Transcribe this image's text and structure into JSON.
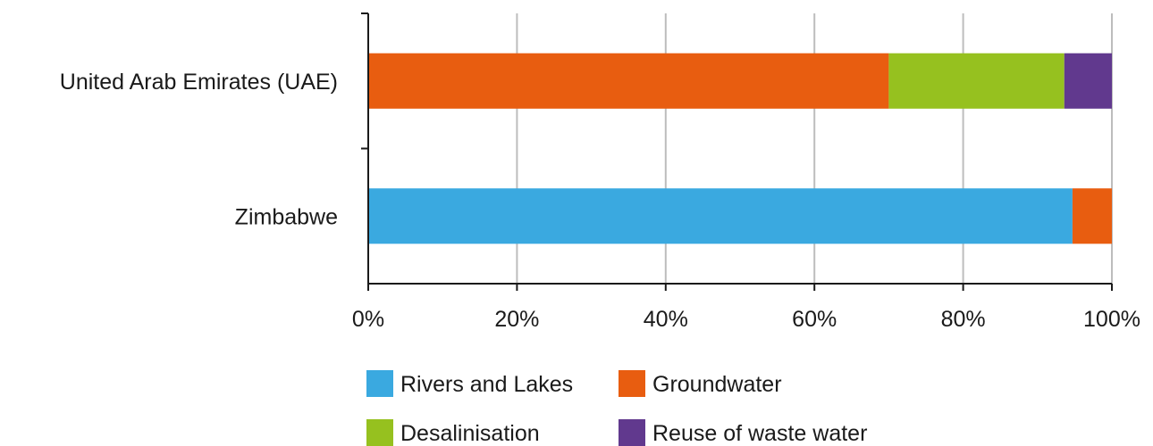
{
  "chart_data": {
    "type": "bar",
    "orientation": "horizontal",
    "stacked": true,
    "percent_stacked": true,
    "categories": [
      "United Arab Emirates (UAE)",
      "Zimbabwe"
    ],
    "series": [
      {
        "name": "Rivers and Lakes",
        "color": "#3aa9e0",
        "values": [
          0,
          94.7
        ]
      },
      {
        "name": "Groundwater",
        "color": "#e85d10",
        "values": [
          70.0,
          5.3
        ]
      },
      {
        "name": "Desalinisation",
        "color": "#96c11f",
        "values": [
          23.6,
          0
        ]
      },
      {
        "name": "Reuse of waste water",
        "color": "#61398e",
        "values": [
          6.4,
          0
        ]
      }
    ],
    "xlim": [
      0,
      100
    ],
    "xticks": [
      "0%",
      "20%",
      "40%",
      "60%",
      "80%",
      "100%"
    ],
    "grid": "vertical",
    "legend": "bottom"
  }
}
